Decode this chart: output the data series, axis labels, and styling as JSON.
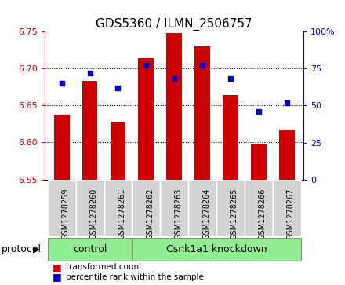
{
  "title": "GDS5360 / ILMN_2506757",
  "samples": [
    "GSM1278259",
    "GSM1278260",
    "GSM1278261",
    "GSM1278262",
    "GSM1278263",
    "GSM1278264",
    "GSM1278265",
    "GSM1278266",
    "GSM1278267"
  ],
  "bar_values": [
    6.638,
    6.683,
    6.628,
    6.714,
    6.748,
    6.73,
    6.664,
    6.597,
    6.618
  ],
  "percentile_values": [
    65,
    72,
    62,
    77,
    68,
    77,
    68,
    46,
    52
  ],
  "ylim_left": [
    6.55,
    6.75
  ],
  "ylim_right": [
    0,
    100
  ],
  "yticks_left": [
    6.55,
    6.6,
    6.65,
    6.7,
    6.75
  ],
  "yticks_right": [
    0,
    25,
    50,
    75,
    100
  ],
  "bar_color": "#cc0000",
  "dot_color": "#0000cc",
  "bar_bottom": 6.55,
  "bg_color": "#ffffff",
  "control_samples": 3,
  "protocol_label": "protocol",
  "control_label": "control",
  "knockdown_label": "Csnk1a1 knockdown",
  "legend_bar_label": "transformed count",
  "legend_dot_label": "percentile rank within the sample",
  "green_color": "#90ee90",
  "label_color_left": "#cc0000",
  "label_color_right": "#0000cc",
  "tick_bg_color": "#d3d3d3",
  "fig_width": 4.4,
  "fig_height": 3.63,
  "title_fontsize": 11,
  "tick_fontsize": 7,
  "axis_fontsize": 8,
  "legend_fontsize": 7.5,
  "proto_fontsize": 9
}
